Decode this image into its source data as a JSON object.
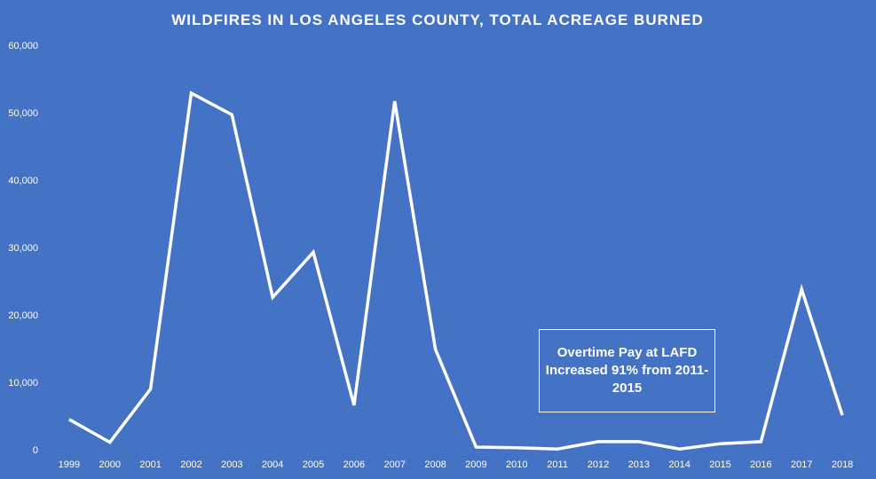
{
  "chart_data": {
    "type": "line",
    "title": "WILDFIRES  IN  LOS  ANGELES  COUNTY,  TOTAL  ACREAGE  BURNED",
    "xlabel": "",
    "ylabel": "",
    "ylim": [
      0,
      60000
    ],
    "yticks": [
      "0",
      "10,000",
      "20,000",
      "30,000",
      "40,000",
      "50,000",
      "60,000"
    ],
    "grid": false,
    "legend": "none",
    "line_color": "#ffffff",
    "background_color": "#4472c4",
    "x": [
      "1999",
      "2000",
      "2001",
      "2002",
      "2003",
      "2004",
      "2005",
      "2006",
      "2007",
      "2008",
      "2009",
      "2010",
      "2011",
      "2012",
      "2013",
      "2014",
      "2015",
      "2016",
      "2017",
      "2018"
    ],
    "series": [
      {
        "values": [
          4500,
          1100,
          9000,
          52900,
          49700,
          22600,
          29300,
          6600,
          51700,
          14900,
          400,
          300,
          100,
          1200,
          1200,
          100,
          900,
          1200,
          23800,
          5100
        ]
      }
    ],
    "annotation": "Overtime Pay at LAFD Increased 91% from 2011-2015"
  }
}
